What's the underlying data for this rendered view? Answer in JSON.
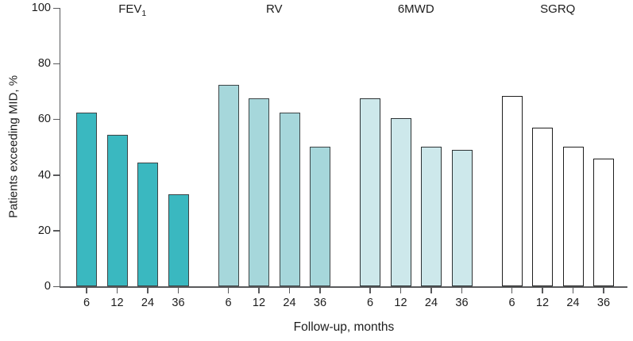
{
  "chart_data": {
    "type": "bar",
    "title": "",
    "ylabel": "Patients exceeding MID, %",
    "xlabel": "Follow-up, months",
    "ylim": [
      0,
      100
    ],
    "yticks": [
      0,
      20,
      40,
      60,
      80,
      100
    ],
    "categories": [
      "6",
      "12",
      "24",
      "36"
    ],
    "series": [
      {
        "name": "FEV",
        "name_subscript": "1",
        "fill": "#3ab8c0",
        "border": "#3d4446",
        "values": [
          62.5,
          54.5,
          44.5,
          33
        ]
      },
      {
        "name": "RV",
        "name_subscript": "",
        "fill": "#a6d7db",
        "border": "#3d4446",
        "values": [
          72.5,
          67.5,
          62.5,
          50
        ]
      },
      {
        "name": "6MWD",
        "name_subscript": "",
        "fill": "#cde8eb",
        "border": "#2c3234",
        "values": [
          67.5,
          60.5,
          50,
          49
        ]
      },
      {
        "name": "SGRQ",
        "name_subscript": "",
        "fill": "#ffffff",
        "border": "#1f1f1f",
        "values": [
          68.5,
          57,
          50,
          46
        ]
      }
    ],
    "grid": false,
    "legend": false,
    "axis_color": "#595a5c",
    "text_color": "#1c1c1c"
  }
}
